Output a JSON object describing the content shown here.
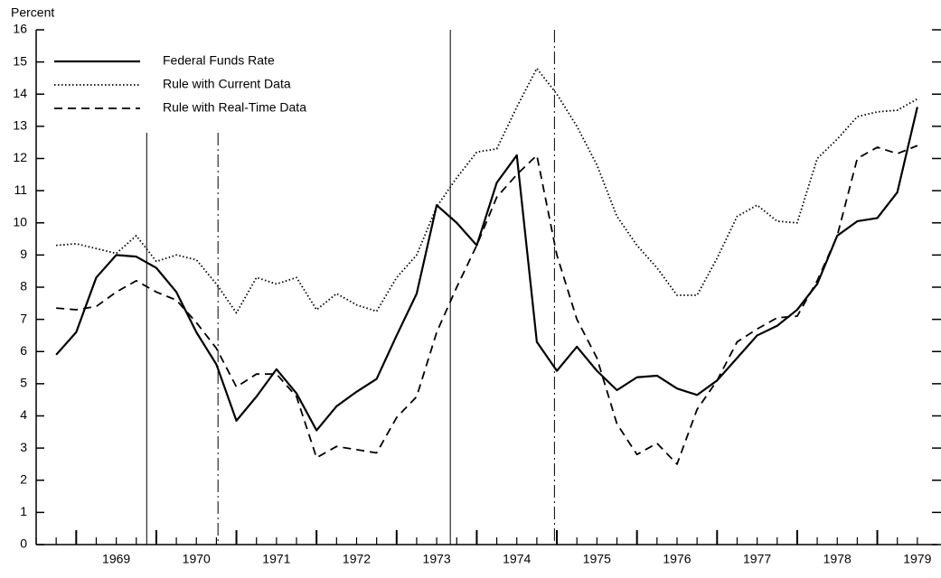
{
  "chart_data": {
    "type": "line",
    "y_axis_label": "Percent",
    "x": [
      1968.75,
      1969,
      1969.25,
      1969.5,
      1969.75,
      1970,
      1970.25,
      1970.5,
      1970.75,
      1971,
      1971.25,
      1971.5,
      1971.75,
      1972,
      1972.25,
      1972.5,
      1972.75,
      1973,
      1973.25,
      1973.5,
      1973.75,
      1974,
      1974.25,
      1974.5,
      1974.75,
      1975,
      1975.25,
      1975.5,
      1975.75,
      1976,
      1976.25,
      1976.5,
      1976.75,
      1977,
      1977.25,
      1977.5,
      1977.75,
      1978,
      1978.25,
      1978.5,
      1978.75,
      1979,
      1979.25,
      1979.5
    ],
    "series": [
      {
        "name": "Federal Funds Rate",
        "color": "#000000",
        "dash": "solid",
        "values": [
          5.9,
          6.6,
          8.3,
          9.0,
          8.95,
          8.6,
          7.85,
          6.6,
          5.6,
          3.85,
          4.6,
          5.45,
          4.7,
          3.55,
          4.3,
          4.75,
          5.15,
          6.5,
          7.8,
          10.55,
          10.0,
          9.3,
          11.25,
          12.1,
          6.3,
          5.4,
          6.15,
          5.4,
          4.8,
          5.2,
          5.25,
          4.85,
          4.65,
          5.1,
          5.8,
          6.5,
          6.8,
          7.3,
          8.1,
          9.6,
          10.05,
          10.15,
          10.95,
          13.6
        ]
      },
      {
        "name": "Rule with Current Data",
        "color": "#000000",
        "dash": "dotted",
        "values": [
          9.3,
          9.35,
          9.2,
          9.05,
          9.6,
          8.8,
          9.0,
          8.85,
          8.1,
          7.2,
          8.3,
          8.1,
          8.3,
          7.3,
          7.8,
          7.45,
          7.25,
          8.3,
          9.0,
          10.5,
          11.4,
          12.2,
          12.3,
          13.6,
          14.8,
          14.0,
          13.0,
          11.8,
          10.2,
          9.3,
          8.6,
          7.75,
          7.75,
          8.9,
          10.2,
          10.55,
          10.05,
          10.0,
          12.0,
          12.6,
          13.3,
          13.45,
          13.5,
          13.85
        ]
      },
      {
        "name": "Rule with Real-Time Data",
        "color": "#000000",
        "dash": "dashed",
        "values": [
          7.35,
          7.3,
          7.4,
          7.85,
          8.2,
          7.85,
          7.6,
          6.9,
          6.1,
          4.9,
          5.3,
          5.3,
          4.6,
          2.7,
          3.05,
          2.95,
          2.85,
          3.95,
          4.6,
          6.6,
          8.0,
          9.3,
          10.8,
          11.5,
          12.1,
          9.0,
          7.0,
          5.8,
          3.75,
          2.8,
          3.15,
          2.5,
          4.2,
          5.1,
          6.3,
          6.7,
          7.05,
          7.1,
          8.2,
          9.6,
          12.0,
          12.35,
          12.15,
          12.4
        ]
      }
    ],
    "xlim": [
      1968.5,
      1979.75
    ],
    "xticks": [
      {
        "value": 1969.5,
        "label": "1969"
      },
      {
        "value": 1970.5,
        "label": "1970"
      },
      {
        "value": 1971.5,
        "label": "1971"
      },
      {
        "value": 1972.5,
        "label": "1972"
      },
      {
        "value": 1973.5,
        "label": "1973"
      },
      {
        "value": 1974.5,
        "label": "1974"
      },
      {
        "value": 1975.5,
        "label": "1975"
      },
      {
        "value": 1976.5,
        "label": "1976"
      },
      {
        "value": 1977.5,
        "label": "1977"
      },
      {
        "value": 1978.5,
        "label": "1978"
      },
      {
        "value": 1979.5,
        "label": "1979"
      }
    ],
    "ylim": [
      0,
      16
    ],
    "yticks": [
      0,
      1,
      2,
      3,
      4,
      5,
      6,
      7,
      8,
      9,
      10,
      11,
      12,
      13,
      14,
      15,
      16
    ],
    "vlines": [
      {
        "x": 1969.88,
        "top": 12.8,
        "dash": "solid"
      },
      {
        "x": 1970.77,
        "top": 12.8,
        "dash": "dashed"
      },
      {
        "x": 1973.67,
        "top": 16,
        "dash": "solid"
      },
      {
        "x": 1974.97,
        "top": 16,
        "dash": "dashed"
      }
    ],
    "legend": "upper left"
  }
}
